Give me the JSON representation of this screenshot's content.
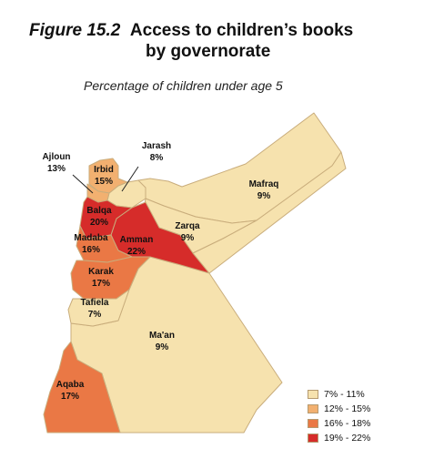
{
  "figure": {
    "number": "Figure 15.2",
    "title_line1": "Access to children’s books",
    "title_line2": "by governorate",
    "subtitle": "Percentage of children under age 5"
  },
  "colors": {
    "class1": "#f6e2ae",
    "class2": "#f2b070",
    "class3": "#ea7845",
    "class4": "#d62c2a",
    "border": "#c9ad7c"
  },
  "regions": [
    {
      "name": "Ajloun",
      "value": "13%",
      "class": 2
    },
    {
      "name": "Jarash",
      "value": "8%",
      "class": 1
    },
    {
      "name": "Irbid",
      "value": "15%",
      "class": 2
    },
    {
      "name": "Mafraq",
      "value": "9%",
      "class": 1
    },
    {
      "name": "Balqa",
      "value": "20%",
      "class": 4
    },
    {
      "name": "Zarqa",
      "value": "9%",
      "class": 1
    },
    {
      "name": "Madaba",
      "value": "16%",
      "class": 3
    },
    {
      "name": "Amman",
      "value": "22%",
      "class": 4
    },
    {
      "name": "Karak",
      "value": "17%",
      "class": 3
    },
    {
      "name": "Tafiela",
      "value": "7%",
      "class": 1
    },
    {
      "name": "Ma'an",
      "value": "9%",
      "class": 1
    },
    {
      "name": "Aqaba",
      "value": "17%",
      "class": 3
    }
  ],
  "legend": [
    {
      "label": "7% - 11%",
      "class": 1
    },
    {
      "label": "12% - 15%",
      "class": 2
    },
    {
      "label": "16% - 18%",
      "class": 3
    },
    {
      "label": "19% - 22%",
      "class": 4
    }
  ]
}
